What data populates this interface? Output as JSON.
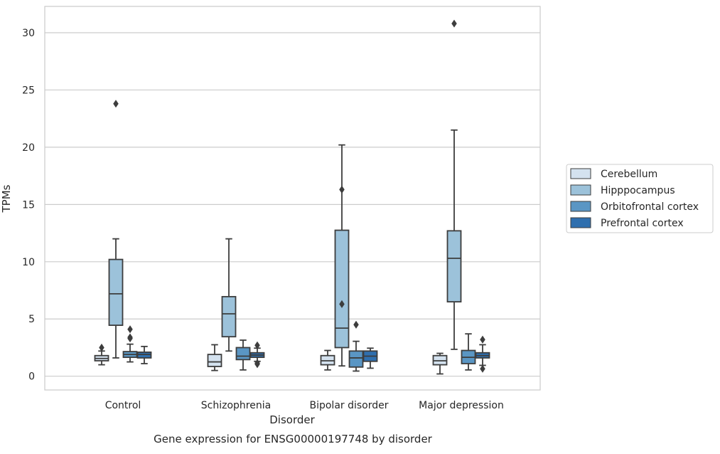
{
  "chart_data": {
    "type": "box",
    "title": "Gene expression for ENSG00000197748 by disorder",
    "xlabel": "Disorder",
    "ylabel": "TPMs",
    "ylim": [
      -1.2,
      32.3
    ],
    "yticks": [
      0,
      5,
      10,
      15,
      20,
      25,
      30
    ],
    "grid": "horizontal",
    "legend_position": "right",
    "categories": [
      "Control",
      "Schizophrenia",
      "Bipolar disorder",
      "Major depression"
    ],
    "series": [
      {
        "name": "Cerebellum",
        "color": "#d4e2ef",
        "boxes": [
          {
            "whislo": 1.0,
            "q1": 1.35,
            "med": 1.55,
            "q3": 1.8,
            "whishi": 2.2,
            "fliers": [
              2.5
            ]
          },
          {
            "whislo": 0.5,
            "q1": 0.85,
            "med": 1.25,
            "q3": 1.9,
            "whishi": 2.75,
            "fliers": []
          },
          {
            "whislo": 0.55,
            "q1": 1.0,
            "med": 1.35,
            "q3": 1.8,
            "whishi": 2.25,
            "fliers": []
          },
          {
            "whislo": 0.2,
            "q1": 1.0,
            "med": 1.35,
            "q3": 1.8,
            "whishi": 2.0,
            "fliers": []
          }
        ]
      },
      {
        "name": "Hipppocampus",
        "color": "#9cc2da",
        "boxes": [
          {
            "whislo": 1.6,
            "q1": 4.45,
            "med": 7.2,
            "q3": 10.2,
            "whishi": 12.0,
            "fliers": [
              23.8
            ]
          },
          {
            "whislo": 2.2,
            "q1": 3.45,
            "med": 5.45,
            "q3": 6.95,
            "whishi": 12.0,
            "fliers": []
          },
          {
            "whislo": 0.9,
            "q1": 2.5,
            "med": 4.2,
            "q3": 12.75,
            "whishi": 20.2,
            "fliers": [
              16.3,
              6.3
            ]
          },
          {
            "whislo": 2.35,
            "q1": 6.5,
            "med": 10.3,
            "q3": 12.7,
            "whishi": 21.5,
            "fliers": [
              30.8
            ]
          }
        ]
      },
      {
        "name": "Orbitofrontal cortex",
        "color": "#5a96c4",
        "boxes": [
          {
            "whislo": 1.25,
            "q1": 1.65,
            "med": 1.9,
            "q3": 2.15,
            "whishi": 2.8,
            "fliers": [
              4.1,
              3.4,
              3.3
            ]
          },
          {
            "whislo": 0.55,
            "q1": 1.45,
            "med": 1.75,
            "q3": 2.5,
            "whishi": 3.15,
            "fliers": []
          },
          {
            "whislo": 0.45,
            "q1": 0.8,
            "med": 1.6,
            "q3": 2.2,
            "whishi": 3.05,
            "fliers": [
              4.5
            ]
          },
          {
            "whislo": 0.55,
            "q1": 1.1,
            "med": 1.65,
            "q3": 2.25,
            "whishi": 3.7,
            "fliers": []
          }
        ]
      },
      {
        "name": "Prefrontal cortex",
        "color": "#2f6fae",
        "boxes": [
          {
            "whislo": 1.1,
            "q1": 1.6,
            "med": 1.9,
            "q3": 2.1,
            "whishi": 2.6,
            "fliers": []
          },
          {
            "whislo": 1.3,
            "q1": 1.65,
            "med": 1.85,
            "q3": 2.05,
            "whishi": 2.45,
            "fliers": [
              2.7,
              1.05,
              1.15
            ]
          },
          {
            "whislo": 0.7,
            "q1": 1.3,
            "med": 1.75,
            "q3": 2.2,
            "whishi": 2.45,
            "fliers": []
          },
          {
            "whislo": 0.95,
            "q1": 1.6,
            "med": 1.8,
            "q3": 2.05,
            "whishi": 2.75,
            "fliers": [
              3.2,
              0.65
            ]
          }
        ]
      }
    ]
  }
}
